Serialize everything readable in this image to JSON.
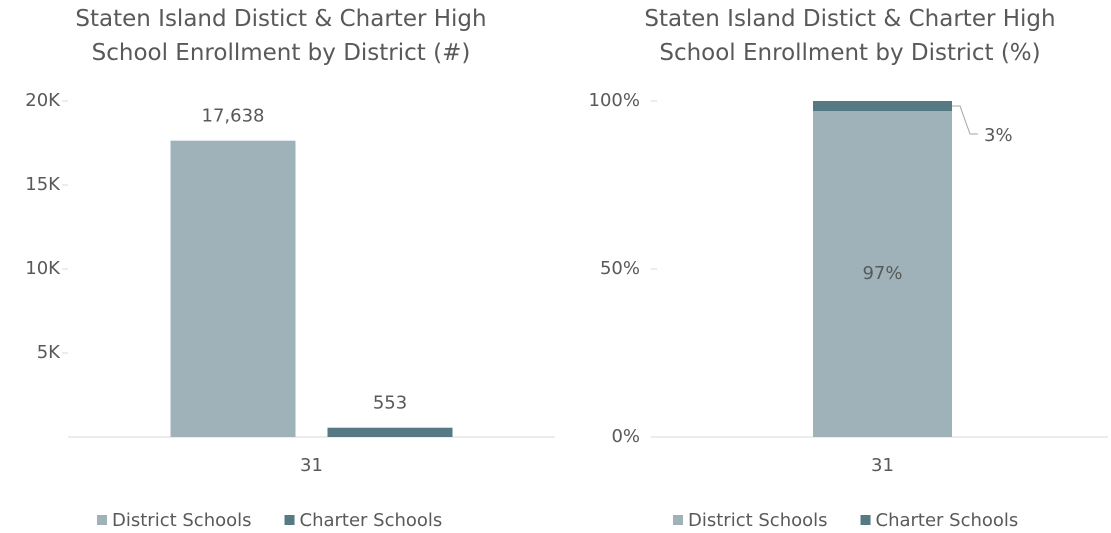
{
  "chart_data": [
    {
      "type": "bar",
      "title": "Staten Island Distict & Charter High School Enrollment by District (#)",
      "categories": [
        "31"
      ],
      "series": [
        {
          "name": "District Schools",
          "color": "#9fb2ba",
          "values": [
            17638
          ],
          "value_labels": [
            "17,638"
          ]
        },
        {
          "name": "Charter Schools",
          "color": "#557a83",
          "values": [
            553
          ],
          "value_labels": [
            "553"
          ]
        }
      ],
      "ylim": [
        0,
        20000
      ],
      "yticks": [
        {
          "value": 5000,
          "label": "5K"
        },
        {
          "value": 10000,
          "label": "10K"
        },
        {
          "value": 15000,
          "label": "15K"
        },
        {
          "value": 20000,
          "label": "20K"
        }
      ],
      "legend": "bottom"
    },
    {
      "type": "stacked_bar",
      "title": "Staten Island Distict & Charter High School Enrollment by District (%)",
      "categories": [
        "31"
      ],
      "series": [
        {
          "name": "District Schools",
          "color": "#9fb2ba",
          "values": [
            97
          ],
          "value_labels": [
            "97%"
          ]
        },
        {
          "name": "Charter Schools",
          "color": "#557a83",
          "values": [
            3
          ],
          "value_labels": [
            "3%"
          ]
        }
      ],
      "ylim": [
        0,
        100
      ],
      "yticks": [
        {
          "value": 0,
          "label": "0%"
        },
        {
          "value": 50,
          "label": "50%"
        },
        {
          "value": 100,
          "label": "100%"
        }
      ],
      "legend": "bottom"
    }
  ]
}
